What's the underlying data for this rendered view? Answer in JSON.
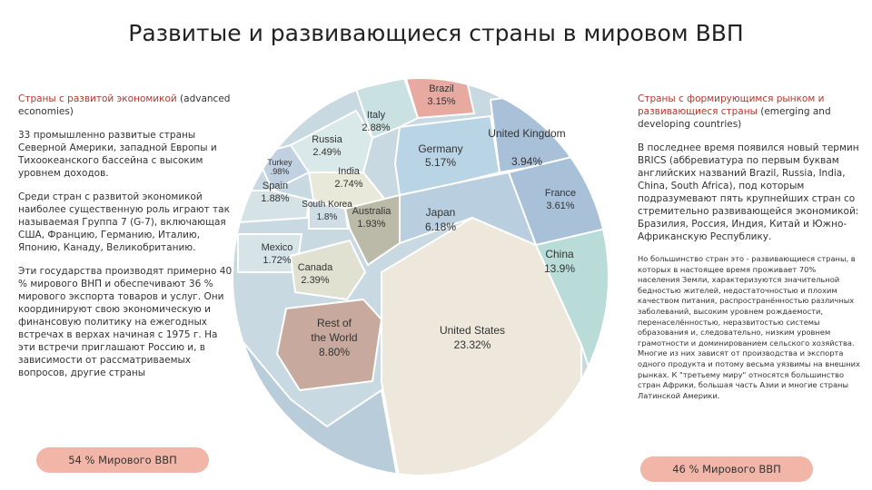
{
  "title": "Развитые и развивающиеся страны в мировом ВВП",
  "left": {
    "heading_accent": "Страны с развитой экономикой",
    "heading_rest": "(advanced economies)",
    "paragraphs": [
      "33 промышленно развитые страны Северной Америки, западной Европы и Тихоокеанского бассейна с высоким уровнем доходов.",
      "Среди стран с развитой экономикой наиболее существенную роль играют так называемая Группа 7 (G-7), включающая США, Францию, Германию, Италию, Японию, Канаду, Великобританию.",
      "Эти государства производят примерно 40 % мирового ВНП и обеспечивают 36 % мирового экспорта товаров и услуг. Они координируют свою экономическую и финансовую политику на ежегодных встречах в верхах начиная с 1975 г. На эти встречи приглашают Россию и, в зависимости от рассматриваемых вопросов, другие страны"
    ],
    "badge": "54 % Мирового ВВП"
  },
  "right": {
    "heading_accent": "Страны с формирующимся рынком и развивающиеся страны",
    "heading_rest": "(emerging and developing countries)",
    "paragraphs": [
      "В последнее время появился новый термин BRICS (аббревиатура по первым буквам английских названий Brazil, Russia, India, China, South Africa), под которым подразумевают пять крупнейших стран со стремительно развивающейся экономикой: Бразилия, Россия, Индия, Китай и Южно-Африканскую Республику.",
      "Но большинство стран это - развивающиеся страны, в которых в настоящее время проживает 70% населения Земли, характеризуются значительной бедностью жителей, недостаточностью и плохим качеством питания, распространённостью различных заболеваний, высоким уровнем рождаемости, перенаселённостью, неразвитостью системы образования и, следовательно, низким уровнем грамотности и доминированием сельского хозяйства. Многие из них зависят от производства и экспорта одного продукта и потому весьма уязвимы на внешних рынках. К \"третьему миру\" относятся большинство стран Африки, большая часть Азии и многие страны Латинской Америки."
    ],
    "badge": "46 % Мирового ВВП"
  },
  "diagram": {
    "cells": [
      {
        "name": "Brazil",
        "value": "3.15%"
      },
      {
        "name": "Italy",
        "value": "2.88%"
      },
      {
        "name": "Russia",
        "value": "2.49%"
      },
      {
        "name": "Turkey",
        "value": ".98%"
      },
      {
        "name": "India",
        "value": "2.74%"
      },
      {
        "name": "Germany",
        "value": "5.17%"
      },
      {
        "name": "United Kingdom",
        "value": "3.94%"
      },
      {
        "name": "France",
        "value": "3.61%"
      },
      {
        "name": "Spain",
        "value": "1.88%"
      },
      {
        "name": "South Korea",
        "value": "1.8%"
      },
      {
        "name": "Australia",
        "value": "1.93%"
      },
      {
        "name": "Japan",
        "value": "6.18%"
      },
      {
        "name": "China",
        "value": "13.9%"
      },
      {
        "name": "Mexico",
        "value": "1.72%"
      },
      {
        "name": "Canada",
        "value": "2.39%"
      },
      {
        "name": "Rest of",
        "name2": "the World",
        "value": "8.80%"
      },
      {
        "name": "United States",
        "value": "23.32%"
      }
    ]
  }
}
